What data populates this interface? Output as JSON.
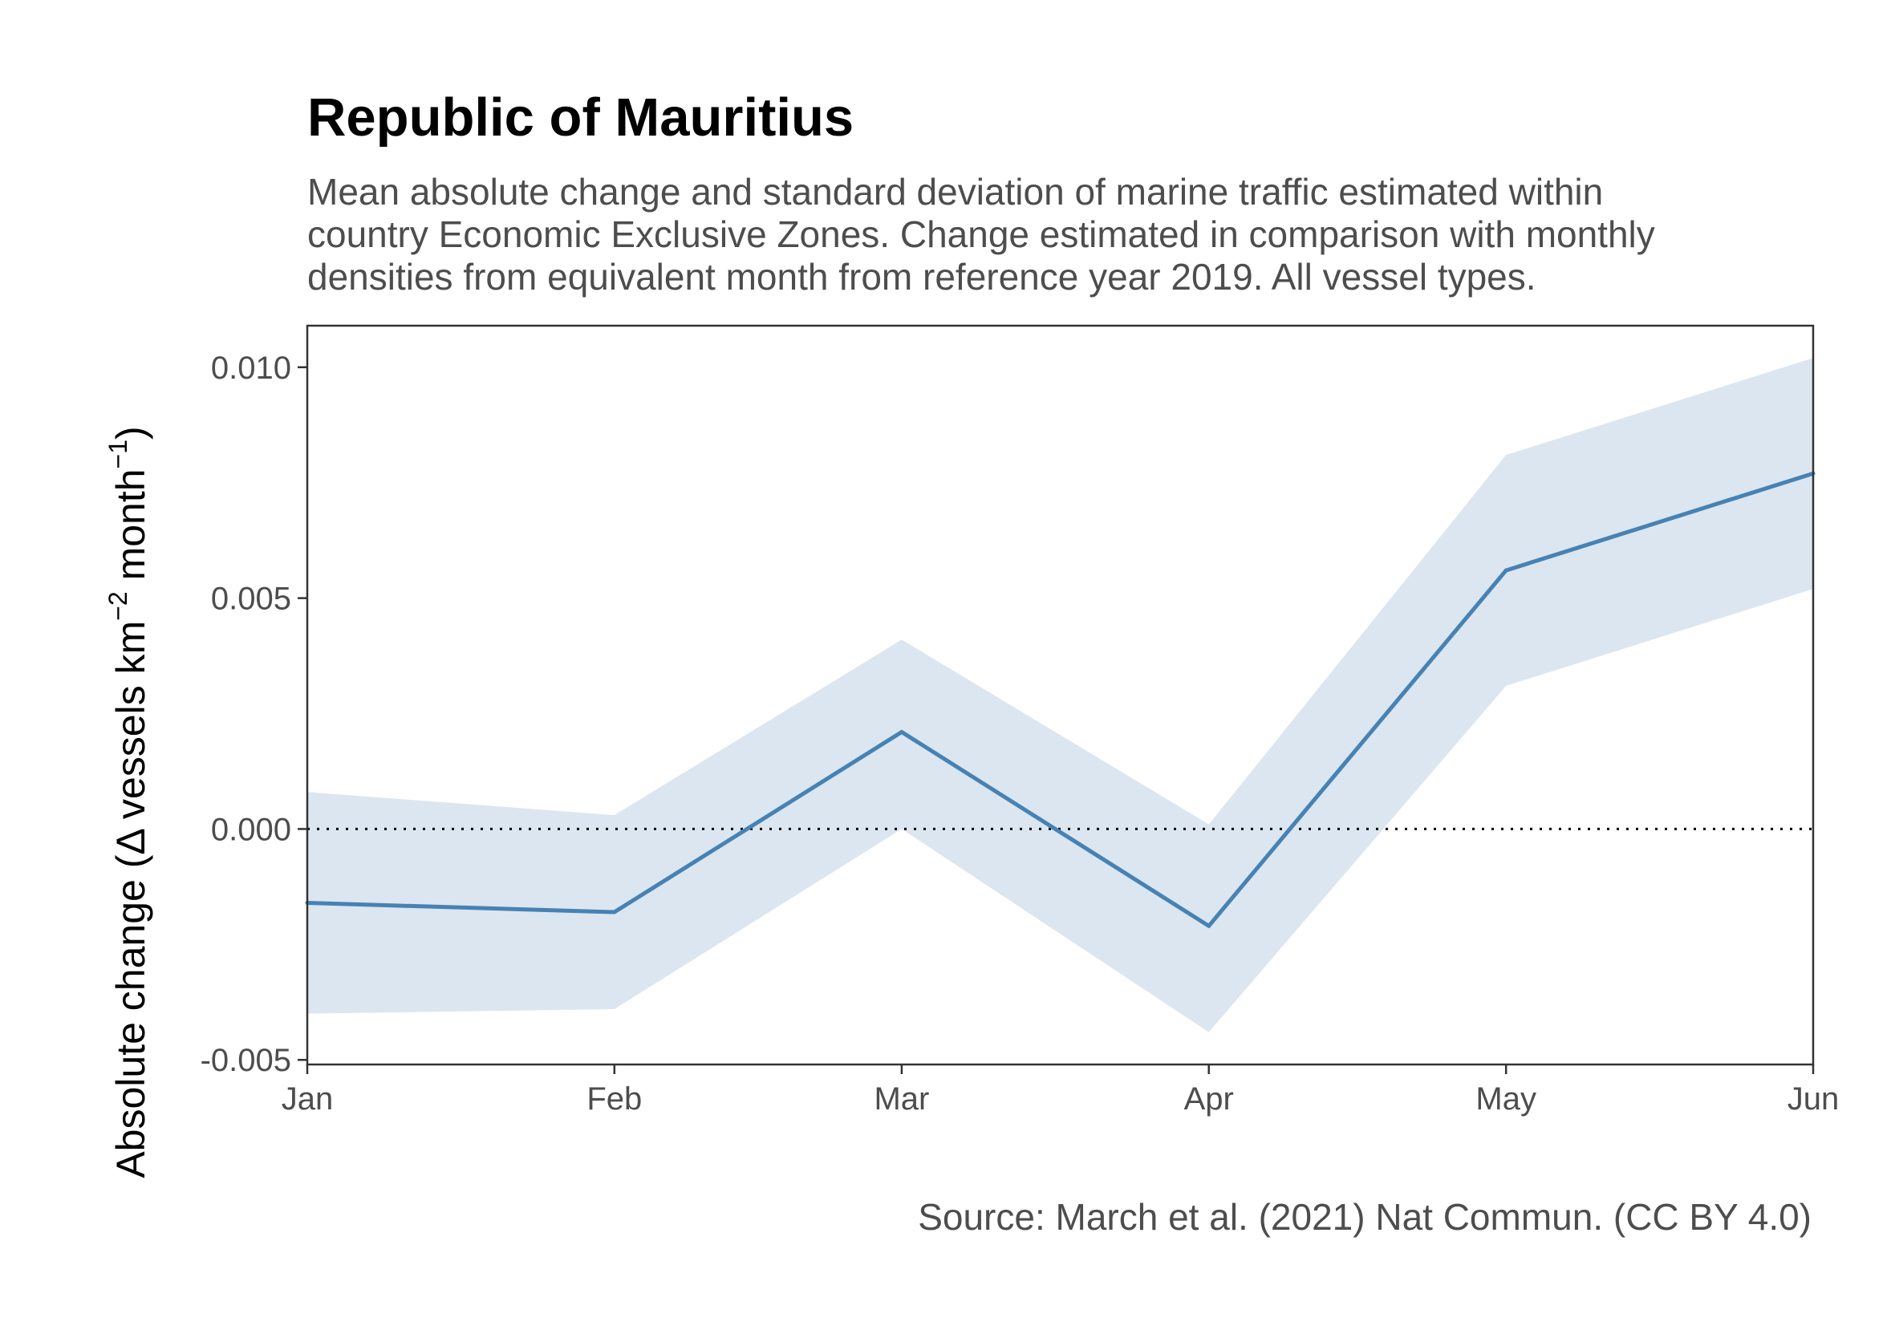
{
  "chart_data": {
    "type": "line",
    "title": "Republic of Mauritius",
    "subtitle_lines": [
      "Mean absolute change and standard deviation of marine traffic estimated within",
      "country Economic Exclusive Zones. Change estimated in comparison with monthly",
      "densities from equivalent month from reference year 2019. All vessel types."
    ],
    "caption": "Source: March et al. (2021) Nat Commun. (CC BY 4.0)",
    "ylabel_prefix": "Absolute change (",
    "ylabel_delta": "Δ",
    "ylabel_vessels": " vessels km",
    "ylabel_exp1": "−2",
    "ylabel_month": " month",
    "ylabel_exp2": "−1",
    "ylabel_suffix": ")",
    "categories": [
      "Jan",
      "Feb",
      "Mar",
      "Apr",
      "May",
      "Jun"
    ],
    "x_dates": [
      "2020-01-01",
      "2020-02-01",
      "2020-03-01",
      "2020-04-01",
      "2020-05-01",
      "2020-06-01"
    ],
    "series": [
      {
        "values": [
          -0.0016,
          -0.0018,
          0.0021,
          -0.0021,
          0.0056,
          0.0077
        ],
        "upper": [
          0.0008,
          0.0003,
          0.0041,
          0.0001,
          0.0081,
          0.0102
        ],
        "lower": [
          -0.004,
          -0.0039,
          0.0,
          -0.0044,
          0.0031,
          0.0052
        ]
      }
    ],
    "reference_line": {
      "y": 0,
      "style": "dotted"
    },
    "ylim": [
      -0.0051,
      0.0109
    ],
    "yticks": [
      -0.005,
      0.0,
      0.005,
      0.01
    ],
    "ytick_labels": [
      "-0.005",
      "0.000",
      "0.005",
      "0.010"
    ],
    "line_color": "#4682b4",
    "band_color": "#dce6f0",
    "grid": false,
    "legend": "none"
  }
}
